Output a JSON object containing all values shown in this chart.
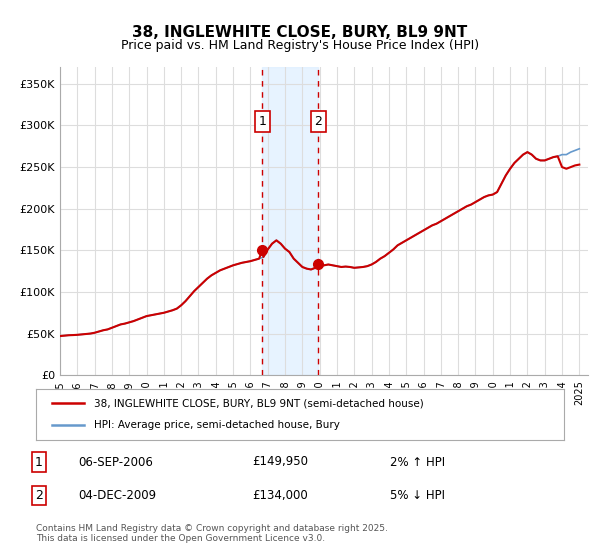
{
  "title": "38, INGLEWHITE CLOSE, BURY, BL9 9NT",
  "subtitle": "Price paid vs. HM Land Registry's House Price Index (HPI)",
  "xlim": [
    1995.0,
    2025.5
  ],
  "ylim": [
    0,
    370000
  ],
  "yticks": [
    0,
    50000,
    100000,
    150000,
    200000,
    250000,
    300000,
    350000
  ],
  "ytick_labels": [
    "£0",
    "£50K",
    "£100K",
    "£150K",
    "£200K",
    "£250K",
    "£300K",
    "£350K"
  ],
  "xticks": [
    1995,
    1996,
    1997,
    1998,
    1999,
    2000,
    2001,
    2002,
    2003,
    2004,
    2005,
    2006,
    2007,
    2008,
    2009,
    2010,
    2011,
    2012,
    2013,
    2014,
    2015,
    2016,
    2017,
    2018,
    2019,
    2020,
    2021,
    2022,
    2023,
    2024,
    2025
  ],
  "sale1_date": 2006.68,
  "sale1_price": 149950,
  "sale1_label": "1",
  "sale2_date": 2009.92,
  "sale2_price": 134000,
  "sale2_label": "2",
  "shaded_x1": 2006.68,
  "shaded_x2": 2009.92,
  "line_color_price": "#cc0000",
  "line_color_hpi": "#6699cc",
  "marker_color": "#cc0000",
  "bg_color": "#ffffff",
  "grid_color": "#dddddd",
  "legend1_text": "38, INGLEWHITE CLOSE, BURY, BL9 9NT (semi-detached house)",
  "legend2_text": "HPI: Average price, semi-detached house, Bury",
  "table_row1": [
    "1",
    "06-SEP-2006",
    "£149,950",
    "2% ↑ HPI"
  ],
  "table_row2": [
    "2",
    "04-DEC-2009",
    "£134,000",
    "5% ↓ HPI"
  ],
  "footnote": "Contains HM Land Registry data © Crown copyright and database right 2025.\nThis data is licensed under the Open Government Licence v3.0.",
  "hpi_data_x": [
    1995.0,
    1995.25,
    1995.5,
    1995.75,
    1996.0,
    1996.25,
    1996.5,
    1996.75,
    1997.0,
    1997.25,
    1997.5,
    1997.75,
    1998.0,
    1998.25,
    1998.5,
    1998.75,
    1999.0,
    1999.25,
    1999.5,
    1999.75,
    2000.0,
    2000.25,
    2000.5,
    2000.75,
    2001.0,
    2001.25,
    2001.5,
    2001.75,
    2002.0,
    2002.25,
    2002.5,
    2002.75,
    2003.0,
    2003.25,
    2003.5,
    2003.75,
    2004.0,
    2004.25,
    2004.5,
    2004.75,
    2005.0,
    2005.25,
    2005.5,
    2005.75,
    2006.0,
    2006.25,
    2006.5,
    2006.75,
    2007.0,
    2007.25,
    2007.5,
    2007.75,
    2008.0,
    2008.25,
    2008.5,
    2008.75,
    2009.0,
    2009.25,
    2009.5,
    2009.75,
    2010.0,
    2010.25,
    2010.5,
    2010.75,
    2011.0,
    2011.25,
    2011.5,
    2011.75,
    2012.0,
    2012.25,
    2012.5,
    2012.75,
    2013.0,
    2013.25,
    2013.5,
    2013.75,
    2014.0,
    2014.25,
    2014.5,
    2014.75,
    2015.0,
    2015.25,
    2015.5,
    2015.75,
    2016.0,
    2016.25,
    2016.5,
    2016.75,
    2017.0,
    2017.25,
    2017.5,
    2017.75,
    2018.0,
    2018.25,
    2018.5,
    2018.75,
    2019.0,
    2019.25,
    2019.5,
    2019.75,
    2020.0,
    2020.25,
    2020.5,
    2020.75,
    2021.0,
    2021.25,
    2021.5,
    2021.75,
    2022.0,
    2022.25,
    2022.5,
    2022.75,
    2023.0,
    2023.25,
    2023.5,
    2023.75,
    2024.0,
    2024.25,
    2024.5,
    2024.75,
    2025.0
  ],
  "hpi_data_y": [
    47000,
    47500,
    48000,
    48200,
    48500,
    49000,
    49500,
    50000,
    51000,
    52500,
    54000,
    55000,
    57000,
    59000,
    61000,
    62000,
    63500,
    65000,
    67000,
    69000,
    71000,
    72000,
    73000,
    74000,
    75000,
    76500,
    78000,
    80000,
    84000,
    89000,
    95000,
    101000,
    106000,
    111000,
    116000,
    120000,
    123000,
    126000,
    128000,
    130000,
    132000,
    133500,
    135000,
    136000,
    137000,
    138500,
    140000,
    142000,
    151000,
    158000,
    162000,
    158000,
    152000,
    148000,
    140000,
    135000,
    130000,
    128000,
    127000,
    129000,
    131000,
    132000,
    133000,
    132000,
    131000,
    130000,
    130500,
    130000,
    129000,
    129500,
    130000,
    131000,
    133000,
    136000,
    140000,
    143000,
    147000,
    151000,
    156000,
    159000,
    162000,
    165000,
    168000,
    171000,
    174000,
    177000,
    180000,
    182000,
    185000,
    188000,
    191000,
    194000,
    197000,
    200000,
    203000,
    205000,
    208000,
    211000,
    214000,
    216000,
    217000,
    220000,
    230000,
    240000,
    248000,
    255000,
    260000,
    265000,
    268000,
    265000,
    260000,
    258000,
    258000,
    260000,
    262000,
    263000,
    265000,
    265000,
    268000,
    270000,
    272000
  ],
  "price_data_x": [
    1995.0,
    1995.25,
    1995.5,
    1995.75,
    1996.0,
    1996.25,
    1996.5,
    1996.75,
    1997.0,
    1997.25,
    1997.5,
    1997.75,
    1998.0,
    1998.25,
    1998.5,
    1998.75,
    1999.0,
    1999.25,
    1999.5,
    1999.75,
    2000.0,
    2000.25,
    2000.5,
    2000.75,
    2001.0,
    2001.25,
    2001.5,
    2001.75,
    2002.0,
    2002.25,
    2002.5,
    2002.75,
    2003.0,
    2003.25,
    2003.5,
    2003.75,
    2004.0,
    2004.25,
    2004.5,
    2004.75,
    2005.0,
    2005.25,
    2005.5,
    2005.75,
    2006.0,
    2006.25,
    2006.5,
    2006.68,
    2006.75,
    2007.0,
    2007.25,
    2007.5,
    2007.75,
    2008.0,
    2008.25,
    2008.5,
    2008.75,
    2009.0,
    2009.25,
    2009.5,
    2009.75,
    2009.92,
    2010.0,
    2010.25,
    2010.5,
    2010.75,
    2011.0,
    2011.25,
    2011.5,
    2011.75,
    2012.0,
    2012.25,
    2012.5,
    2012.75,
    2013.0,
    2013.25,
    2013.5,
    2013.75,
    2014.0,
    2014.25,
    2014.5,
    2014.75,
    2015.0,
    2015.25,
    2015.5,
    2015.75,
    2016.0,
    2016.25,
    2016.5,
    2016.75,
    2017.0,
    2017.25,
    2017.5,
    2017.75,
    2018.0,
    2018.25,
    2018.5,
    2018.75,
    2019.0,
    2019.25,
    2019.5,
    2019.75,
    2020.0,
    2020.25,
    2020.5,
    2020.75,
    2021.0,
    2021.25,
    2021.5,
    2021.75,
    2022.0,
    2022.25,
    2022.5,
    2022.75,
    2023.0,
    2023.25,
    2023.5,
    2023.75,
    2024.0,
    2024.25,
    2024.5,
    2024.75,
    2025.0
  ],
  "price_data_y": [
    47000,
    47500,
    48000,
    48200,
    48500,
    49000,
    49500,
    50000,
    51000,
    52500,
    54000,
    55000,
    57000,
    59000,
    61000,
    62000,
    63500,
    65000,
    67000,
    69000,
    71000,
    72000,
    73000,
    74000,
    75000,
    76500,
    78000,
    80000,
    84000,
    89000,
    95000,
    101000,
    106000,
    111000,
    116000,
    120000,
    123000,
    126000,
    128000,
    130000,
    132000,
    133500,
    135000,
    136000,
    137000,
    138500,
    140000,
    149950,
    142000,
    151000,
    158000,
    162000,
    158000,
    152000,
    148000,
    140000,
    135000,
    130000,
    128000,
    127000,
    129000,
    134000,
    131000,
    132000,
    133000,
    132000,
    131000,
    130000,
    130500,
    130000,
    129000,
    129500,
    130000,
    131000,
    133000,
    136000,
    140000,
    143000,
    147000,
    151000,
    156000,
    159000,
    162000,
    165000,
    168000,
    171000,
    174000,
    177000,
    180000,
    182000,
    185000,
    188000,
    191000,
    194000,
    197000,
    200000,
    203000,
    205000,
    208000,
    211000,
    214000,
    216000,
    217000,
    220000,
    230000,
    240000,
    248000,
    255000,
    260000,
    265000,
    268000,
    265000,
    260000,
    258000,
    258000,
    260000,
    262000,
    263000,
    250000,
    248000,
    250000,
    252000,
    253000
  ]
}
